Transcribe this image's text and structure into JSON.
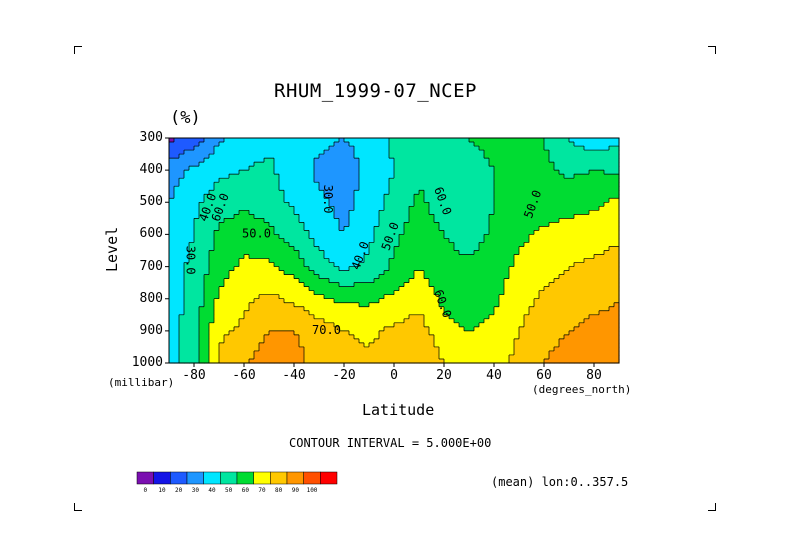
{
  "chart_data": {
    "type": "heatmap",
    "title": "RHUM_1999-07_NCEP",
    "units": "(%)",
    "xlabel": "Latitude",
    "ylabel": "Level",
    "x_units": "(degrees_north)",
    "y_units": "(millibar)",
    "xlim": [
      -90,
      90
    ],
    "ylim": [
      1000,
      300
    ],
    "x_ticks": [
      "-80",
      "-60",
      "-40",
      "-20",
      "0",
      "20",
      "40",
      "60",
      "80"
    ],
    "y_ticks": [
      "300",
      "400",
      "500",
      "600",
      "700",
      "800",
      "900",
      "1000"
    ],
    "levels": [
      1000,
      900,
      800,
      700,
      600,
      500,
      400,
      300
    ],
    "lat": [
      -90,
      -80,
      -70,
      -60,
      -50,
      -40,
      -30,
      -20,
      -10,
      0,
      10,
      20,
      30,
      40,
      50,
      60,
      70,
      80,
      90
    ],
    "values": [
      [
        36,
        45,
        72,
        78,
        88,
        84,
        76,
        75,
        72,
        75,
        80,
        70,
        65,
        68,
        72,
        80,
        85,
        88,
        86
      ],
      [
        36,
        45,
        68,
        72,
        80,
        80,
        75,
        70,
        68,
        72,
        75,
        63,
        60,
        63,
        70,
        76,
        80,
        82,
        82
      ],
      [
        35,
        44,
        62,
        68,
        72,
        68,
        62,
        58,
        58,
        62,
        66,
        58,
        55,
        58,
        66,
        72,
        76,
        78,
        80
      ],
      [
        36,
        42,
        56,
        62,
        62,
        56,
        45,
        38,
        42,
        52,
        60,
        54,
        52,
        55,
        62,
        66,
        70,
        72,
        74
      ],
      [
        35,
        40,
        52,
        56,
        52,
        46,
        35,
        30,
        38,
        48,
        55,
        50,
        45,
        52,
        58,
        62,
        64,
        66,
        68
      ],
      [
        30,
        38,
        45,
        48,
        45,
        38,
        32,
        27,
        34,
        44,
        52,
        45,
        42,
        50,
        55,
        55,
        56,
        58,
        62
      ],
      [
        25,
        32,
        38,
        40,
        42,
        34,
        28,
        26,
        32,
        40,
        48,
        40,
        44,
        50,
        55,
        52,
        48,
        50,
        48
      ],
      [
        8,
        15,
        28,
        34,
        38,
        36,
        32,
        30,
        33,
        42,
        45,
        44,
        50,
        54,
        55,
        50,
        40,
        32,
        38
      ]
    ],
    "contour_labels": [
      "40.0",
      "60.0",
      "50.0",
      "60.0",
      "30.0",
      "40.0",
      "50.0",
      "60.0",
      "50.0",
      "70.0",
      "30.0"
    ],
    "colorbar": {
      "ticks": [
        "0",
        "10",
        "20",
        "30",
        "40",
        "50",
        "60",
        "70",
        "80",
        "90",
        "100"
      ],
      "colors": [
        "#7a0fb0",
        "#1414e6",
        "#1e5aff",
        "#1e96ff",
        "#00e6ff",
        "#00e6a0",
        "#00dc32",
        "#ffff00",
        "#ffc800",
        "#ff9600",
        "#ff5000",
        "#ff0000"
      ]
    },
    "grid": false
  },
  "footer": {
    "contour_interval": "CONTOUR INTERVAL = 5.000E+00",
    "mean_note": "(mean) lon:0..357.5"
  }
}
